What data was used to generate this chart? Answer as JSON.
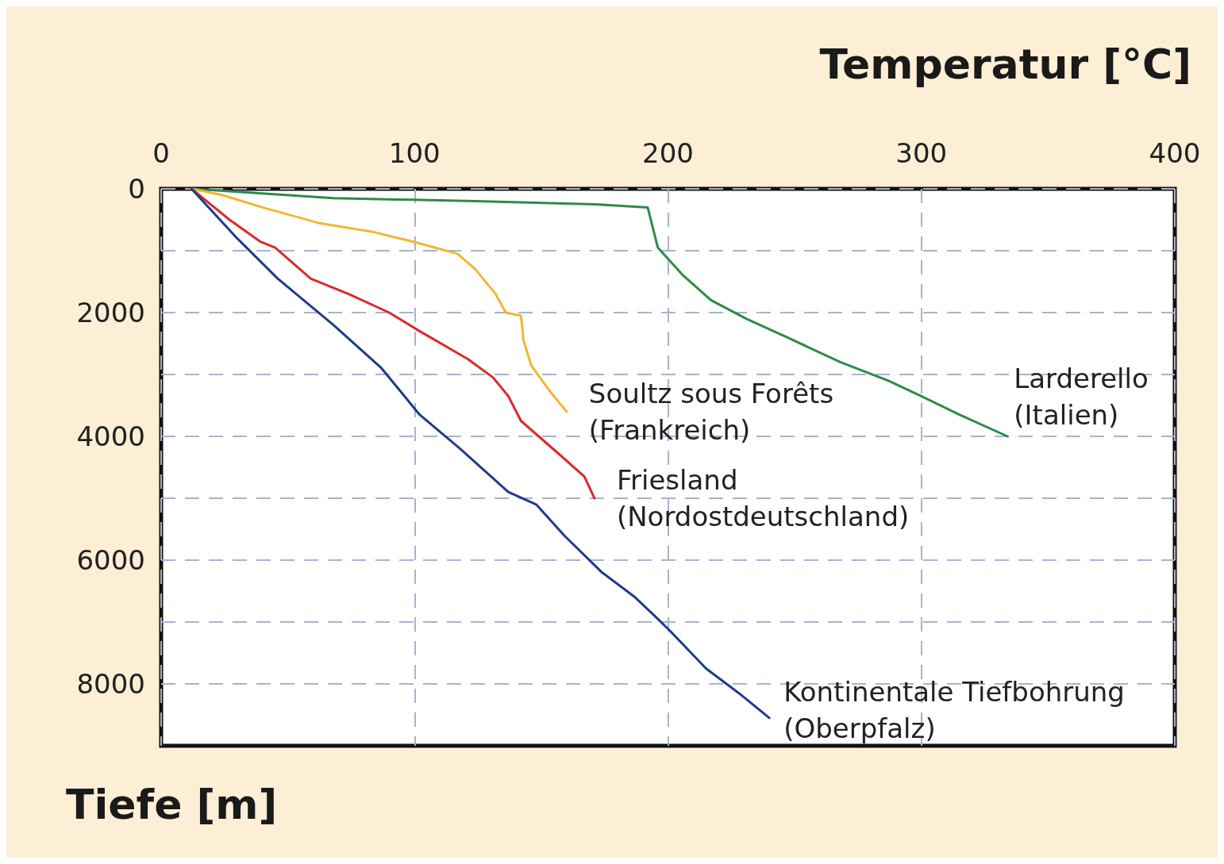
{
  "chart_data": {
    "type": "line",
    "xlabel": "Temperatur [°C]",
    "ylabel": "Tiefe [m]",
    "xlim": [
      0,
      400
    ],
    "xticks": [
      0,
      100,
      200,
      300,
      400
    ],
    "ylim": [
      9000,
      0
    ],
    "yticks": [
      0,
      {
        "value": 1000,
        "label": null
      },
      2000,
      {
        "value": 3000,
        "label": null
      },
      4000,
      {
        "value": 5000,
        "label": null
      },
      6000,
      {
        "value": 7000,
        "label": null
      },
      8000
    ],
    "grid": true,
    "marker": "none",
    "line_style": "solid",
    "series": [
      {
        "name": "Larderello\n(Italien)",
        "color": "#2e8b47",
        "x": [
          12,
          68,
          124,
          171,
          192,
          196,
          206,
          217,
          231,
          247,
          268,
          287,
          300,
          315,
          334
        ],
        "values": [
          0,
          150,
          200,
          250,
          300,
          950,
          1400,
          1800,
          2100,
          2400,
          2800,
          3100,
          3350,
          3650,
          4000
        ]
      },
      {
        "name": "Soultz sous Forêts\n(Frankreich)",
        "color": "#f2b631",
        "x": [
          12,
          24,
          40,
          62,
          84,
          99,
          117,
          124,
          132,
          136,
          142,
          143,
          146,
          153,
          160
        ],
        "values": [
          0,
          100,
          300,
          550,
          700,
          850,
          1050,
          1300,
          1700,
          2000,
          2050,
          2450,
          2850,
          3250,
          3600
        ]
      },
      {
        "name": "Friesland\n(Nordostdeutschland)",
        "color": "#d92b2b",
        "x": [
          12,
          27,
          39,
          45,
          59,
          74,
          90,
          102,
          121,
          131,
          137,
          142,
          156,
          167,
          171
        ],
        "values": [
          0,
          500,
          850,
          950,
          1450,
          1700,
          2000,
          2300,
          2750,
          3050,
          3350,
          3750,
          4250,
          4650,
          5000
        ]
      },
      {
        "name": "Kontinentale Tiefbohrung\n(Oberpfalz)",
        "color": "#1f3c88",
        "x": [
          12,
          30,
          46,
          68,
          87,
          102,
          118,
          137,
          148,
          159,
          174,
          187,
          196,
          201,
          215,
          228,
          240
        ],
        "values": [
          0,
          800,
          1450,
          2200,
          2900,
          3650,
          4200,
          4900,
          5100,
          5600,
          6200,
          6600,
          6950,
          7150,
          7750,
          8150,
          8550
        ]
      }
    ]
  }
}
